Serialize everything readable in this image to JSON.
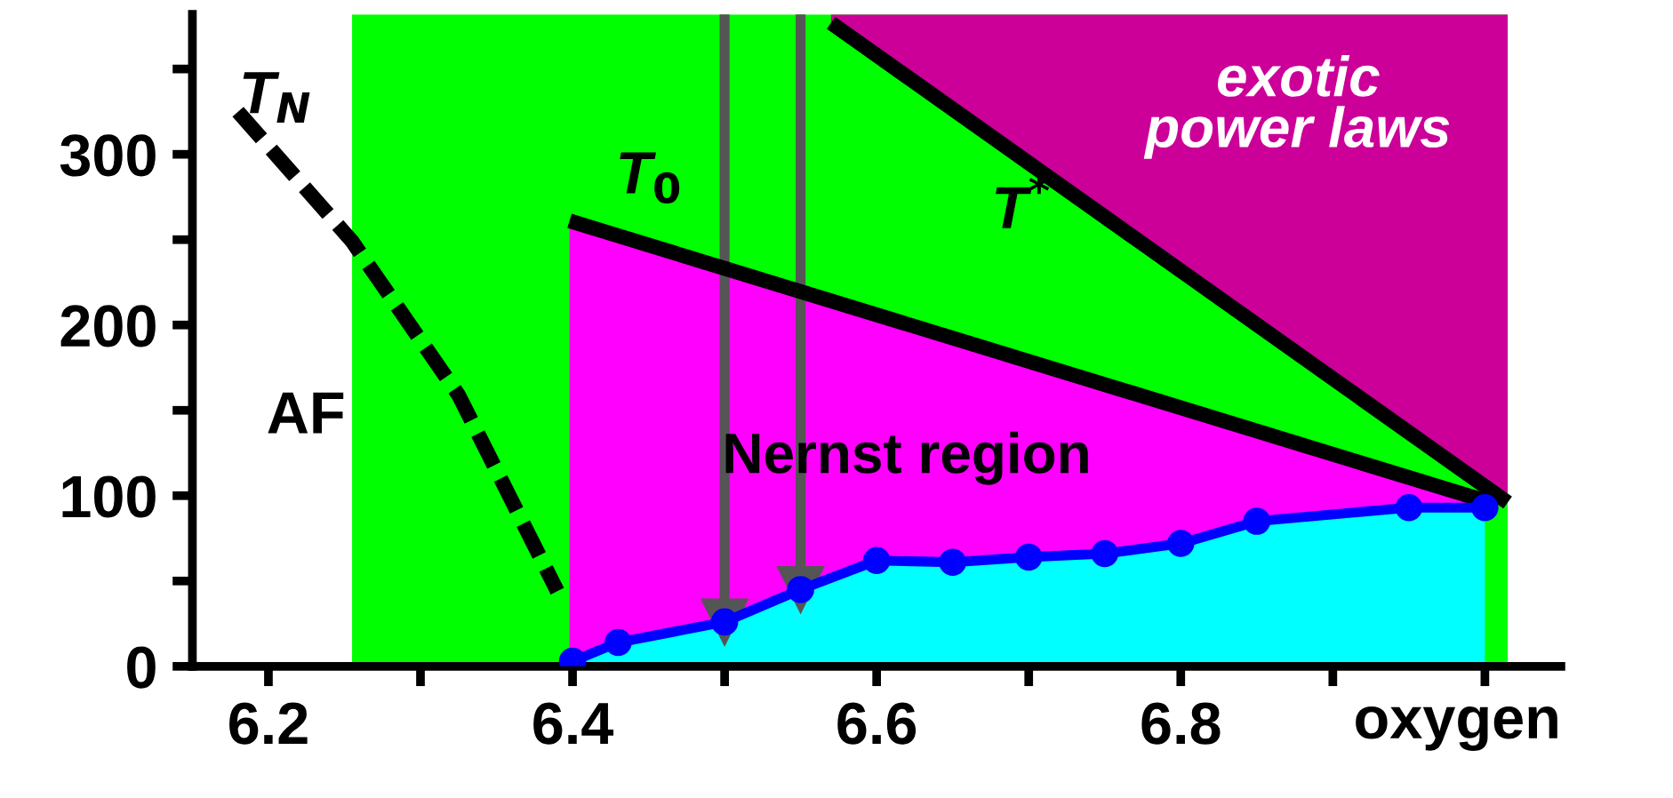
{
  "chart_data": {
    "type": "line",
    "xlabel": "oxygen",
    "xlim": [
      6.15,
      7.05
    ],
    "ylim": [
      0,
      382
    ],
    "xticks": [
      6.2,
      {
        "value": 6.3,
        "label": null
      },
      6.4,
      {
        "value": 6.5,
        "label": null
      },
      6.6,
      {
        "value": 6.7,
        "label": null
      },
      6.8,
      {
        "value": 6.9,
        "label": null
      },
      {
        "value": 7.0,
        "label": null
      }
    ],
    "yticks": [
      0,
      {
        "value": 50,
        "label": null
      },
      100,
      {
        "value": 150,
        "label": null
      },
      200,
      {
        "value": 250,
        "label": null
      },
      300,
      {
        "value": 350,
        "label": null
      }
    ],
    "series": [
      {
        "color": "#000000",
        "x": [
          6.57,
          7.015
        ],
        "values": [
          377,
          96
        ],
        "line_style": "solid",
        "marker": "none"
      },
      {
        "color": "#000000",
        "x": [
          6.398,
          7.0
        ],
        "values": [
          261,
          97
        ],
        "line_style": "solid",
        "marker": "none"
      },
      {
        "color": "#000000",
        "x": [
          6.18,
          6.255,
          6.325,
          6.39
        ],
        "values": [
          325,
          249,
          159,
          44
        ],
        "line_style": "dashed",
        "marker": "none"
      },
      {
        "color": "#0000ff",
        "x": [
          6.4,
          6.43,
          6.5,
          6.55,
          6.6,
          6.65,
          6.7,
          6.75,
          6.8,
          6.85,
          6.95,
          7.0
        ],
        "values": [
          3,
          14,
          26,
          45,
          62,
          61,
          64,
          66,
          72,
          85,
          93,
          93
        ],
        "line_style": "solid",
        "marker": "circle"
      }
    ],
    "bands": [
      {
        "axis": "x",
        "from": 6.255,
        "to": 7.015,
        "color": "#00ff00"
      }
    ],
    "annotations": [
      "T$_{N}$",
      "T$_{0}$",
      "T$^{*}$",
      "AF",
      "Nernst region",
      "exotic\npower laws"
    ],
    "ref_lines": [
      {
        "axis": "x",
        "value": 6.5,
        "color": "#555555"
      },
      {
        "axis": "x",
        "value": 6.55,
        "color": "#555555"
      }
    ]
  }
}
